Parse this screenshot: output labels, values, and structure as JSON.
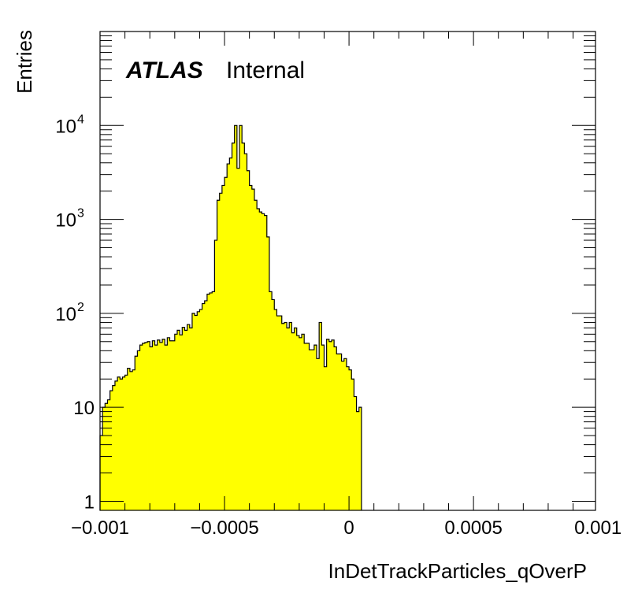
{
  "chart_data": {
    "type": "histogram",
    "xlabel": "InDetTrackParticles_qOverP",
    "ylabel": "Entries",
    "xlim": [
      -0.001,
      0.00099
    ],
    "ylim": [
      0.8,
      100000
    ],
    "log_y": true,
    "grid": false,
    "legend": "none",
    "x_tick_labels": [
      {
        "value": -0.001,
        "label": "−0.001"
      },
      {
        "value": -0.0005,
        "label": "−0.0005"
      },
      {
        "value": 0,
        "label": "0"
      },
      {
        "value": 0.0005,
        "label": "0.0005"
      },
      {
        "value": 0.001,
        "label": "0.001"
      }
    ],
    "y_tick_labels": [
      {
        "value": 1,
        "base": "1",
        "exp": ""
      },
      {
        "value": 10,
        "base": "10",
        "exp": ""
      },
      {
        "value": 100,
        "base": "10",
        "exp": "2"
      },
      {
        "value": 1000,
        "base": "10",
        "exp": "3"
      },
      {
        "value": 10000,
        "base": "10",
        "exp": "4"
      }
    ],
    "annotation": {
      "bold": "ATLAS",
      "normal": "Internal"
    },
    "fill_color": "#ffff00",
    "line_color": "#000000",
    "bin_low": -0.001,
    "bin_width": 1e-05,
    "values": [
      5,
      10,
      11,
      12,
      15,
      17,
      19,
      21,
      20,
      21,
      22,
      26,
      24,
      25,
      35,
      40,
      46,
      48,
      49,
      50,
      44,
      51,
      46,
      52,
      49,
      53,
      46,
      55,
      51,
      51,
      60,
      66,
      59,
      71,
      66,
      76,
      70,
      100,
      95,
      104,
      110,
      127,
      136,
      160,
      165,
      170,
      600,
      1600,
      1900,
      2300,
      2800,
      3900,
      4500,
      6500,
      10000,
      3500,
      10000,
      6500,
      5000,
      3300,
      2300,
      2100,
      1600,
      1300,
      1200,
      1150,
      1100,
      650,
      170,
      140,
      110,
      94,
      94,
      78,
      80,
      70,
      80,
      62,
      70,
      58,
      55,
      60,
      48,
      48,
      41,
      41,
      46,
      33,
      80,
      46,
      27,
      53,
      50,
      52,
      44,
      37,
      37,
      31,
      33,
      27,
      25,
      20,
      13,
      9,
      10
    ]
  }
}
